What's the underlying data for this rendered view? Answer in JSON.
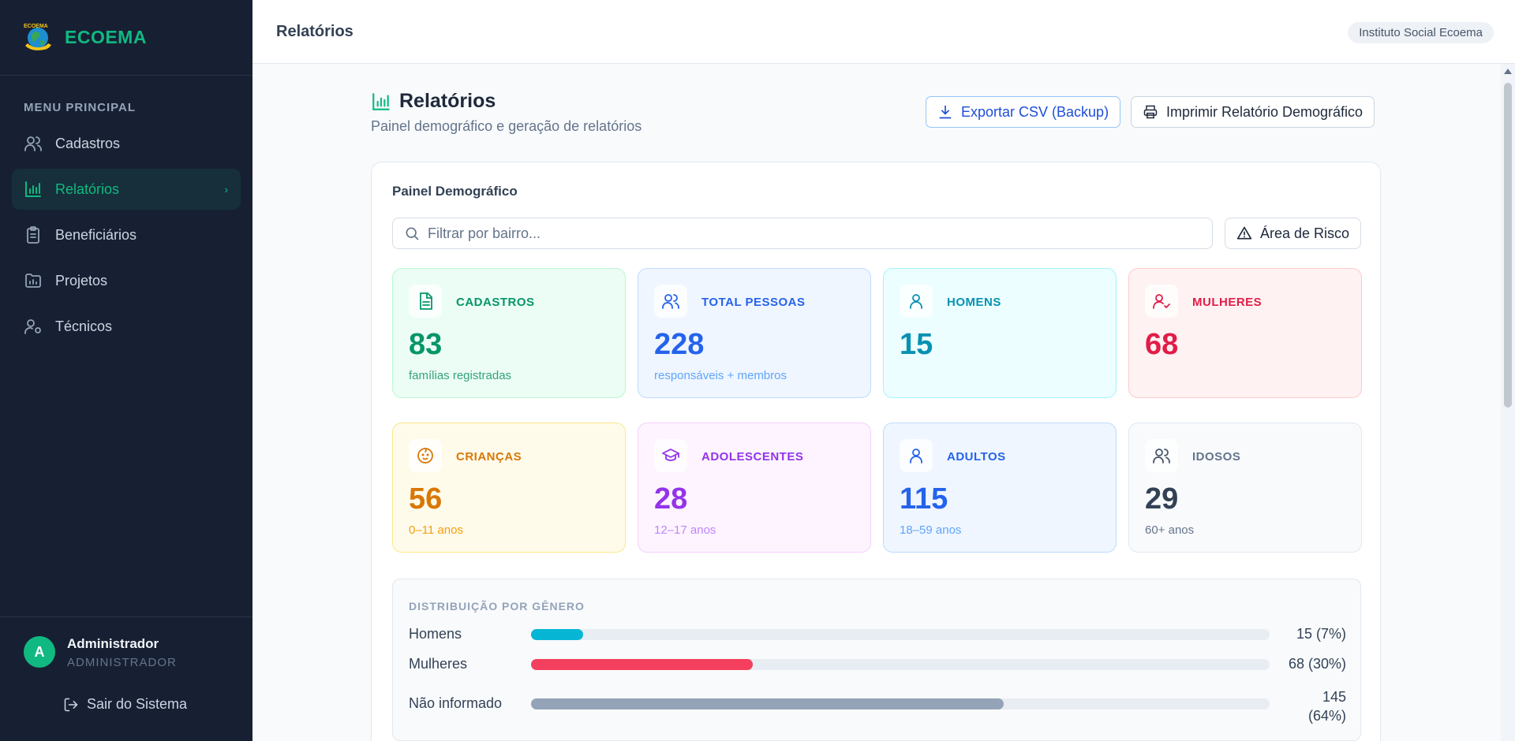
{
  "brand": {
    "name": "ECOEMA",
    "logo_text": "ECOEMA"
  },
  "sidebar": {
    "menu_title": "MENU PRINCIPAL",
    "items": [
      {
        "label": "Cadastros",
        "icon": "users-icon",
        "active": false
      },
      {
        "label": "Relatórios",
        "icon": "bar-chart-icon",
        "active": true
      },
      {
        "label": "Beneficiários",
        "icon": "clipboard-icon",
        "active": false
      },
      {
        "label": "Projetos",
        "icon": "folder-chart-icon",
        "active": false
      },
      {
        "label": "Técnicos",
        "icon": "user-gear-icon",
        "active": false
      }
    ],
    "user": {
      "initial": "A",
      "name": "Administrador",
      "role": "ADMINISTRADOR"
    },
    "logout_label": "Sair do Sistema"
  },
  "topbar": {
    "title": "Relatórios",
    "org": "Instituto Social Ecoema"
  },
  "page": {
    "title": "Relatórios",
    "subtitle": "Painel demográfico e geração de relatórios",
    "export_label": "Exportar CSV (Backup)",
    "print_label": "Imprimir Relatório Demográfico"
  },
  "panel": {
    "title": "Painel Demográfico",
    "search_placeholder": "Filtrar por bairro...",
    "risk_label": "Área de Risco",
    "stats": [
      {
        "label": "CADASTROS",
        "value": "83",
        "sub": "famílias registradas",
        "icon": "document-icon"
      },
      {
        "label": "TOTAL PESSOAS",
        "value": "228",
        "sub": "responsáveis + membros",
        "icon": "users-icon"
      },
      {
        "label": "HOMENS",
        "value": "15",
        "sub": "",
        "icon": "user-icon"
      },
      {
        "label": "MULHERES",
        "value": "68",
        "sub": "",
        "icon": "user-check-icon"
      },
      {
        "label": "CRIANÇAS",
        "value": "56",
        "sub": "0–11 anos",
        "icon": "baby-icon"
      },
      {
        "label": "ADOLESCENTES",
        "value": "28",
        "sub": "12–17 anos",
        "icon": "graduation-cap-icon"
      },
      {
        "label": "ADULTOS",
        "value": "115",
        "sub": "18–59 anos",
        "icon": "user-icon"
      },
      {
        "label": "IDOSOS",
        "value": "29",
        "sub": "60+ anos",
        "icon": "users-icon"
      }
    ],
    "gender": {
      "title": "DISTRIBUIÇÃO POR GÊNERO",
      "rows": [
        {
          "label": "Homens",
          "value": "15 (7%)",
          "fraction": 0.07,
          "color": "#06b6d4"
        },
        {
          "label": "Mulheres",
          "value": "68 (30%)",
          "fraction": 0.3,
          "color": "#f43f5e"
        },
        {
          "label": "Não informado",
          "value": "145 (64%)",
          "fraction": 0.64,
          "color": "#94a3b8"
        }
      ]
    }
  },
  "colors": {
    "accent": "#10b981",
    "sidebar_bg": "#172033"
  }
}
